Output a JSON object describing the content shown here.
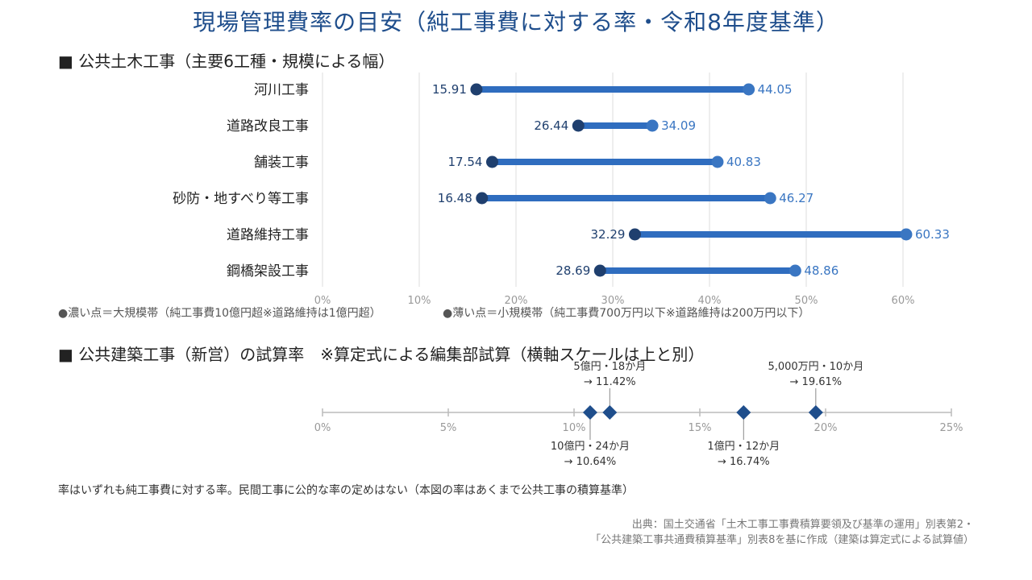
{
  "title": "現場管理費率の目安（純工事費に対する率・令和8年度基準）",
  "civil": {
    "heading": "■ 公共土木工事（主要6工種・規模による幅）",
    "legend_small_scale": "●濃い点＝大規模帯（純工事費10億円超※道路維持は1億円超）",
    "legend_large_scale": "●薄い点＝小規模帯（純工事費700万円以下※道路維持は200万円以下）"
  },
  "building": {
    "heading": "■ 公共建築工事（新営）の試算率　※算定式による編集部試算（横軸スケールは上と別）"
  },
  "note": "率はいずれも純工事費に対する率。民間工事に公的な率の定めはない（本図の率はあくまで公共工事の積算基準）",
  "source_line1": "出典：国土交通省「土木工事工事費積算要領及び基準の運用」別表第2・",
  "source_line2": "「公共建築工事共通費積算基準」別表8を基に作成（建築は算定式による試算値）",
  "colors": {
    "dark_point": "#1f3f6e",
    "light_point": "#3a76c2",
    "bar": "#2f6dbf",
    "grid": "#dddddd",
    "diamond": "#1f4e8c"
  },
  "chart_data": [
    {
      "type": "dumbbell",
      "categories": [
        "河川工事",
        "道路改良工事",
        "舗装工事",
        "砂防・地すべり等工事",
        "道路維持工事",
        "鋼橋架設工事"
      ],
      "series": [
        {
          "name": "濃い点＝大規模帯",
          "values": [
            15.91,
            26.44,
            17.54,
            16.48,
            32.29,
            28.69
          ]
        },
        {
          "name": "薄い点＝小規模帯",
          "values": [
            44.05,
            34.09,
            40.83,
            46.27,
            60.33,
            48.86
          ]
        }
      ],
      "xlim": [
        0,
        65
      ],
      "xticks": [
        "0%",
        "10%",
        "20%",
        "30%",
        "40%",
        "50%",
        "60%"
      ],
      "xtick_values": [
        0,
        10,
        20,
        30,
        40,
        50,
        60
      ],
      "grid": true
    },
    {
      "type": "scatter",
      "points": [
        {
          "label": "10億円・24か月",
          "arrow": "→ 10.64%",
          "x": 10.64,
          "pos": "below"
        },
        {
          "label": "5億円・18か月",
          "arrow": "→ 11.42%",
          "x": 11.42,
          "pos": "above"
        },
        {
          "label": "1億円・12か月",
          "arrow": "→ 16.74%",
          "x": 16.74,
          "pos": "below"
        },
        {
          "label": "5,000万円・10か月",
          "arrow": "→ 19.61%",
          "x": 19.61,
          "pos": "above"
        }
      ],
      "xlim": [
        0,
        25
      ],
      "xticks": [
        "0%",
        "5%",
        "10%",
        "15%",
        "20%",
        "25%"
      ],
      "xtick_values": [
        0,
        5,
        10,
        15,
        20,
        25
      ]
    }
  ]
}
